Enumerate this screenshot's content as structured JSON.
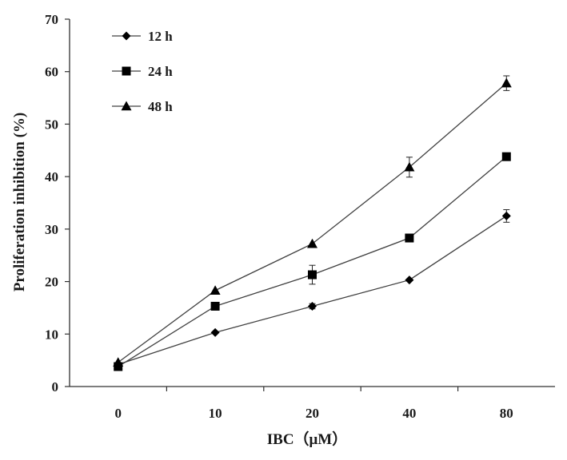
{
  "chart_data": {
    "type": "line",
    "title": "",
    "xlabel": "IBC（μM）",
    "ylabel": "Proliferation inhibition (%)",
    "categories": [
      "0",
      "10",
      "20",
      "40",
      "80"
    ],
    "ylim": [
      0,
      70
    ],
    "yticks": [
      0,
      10,
      20,
      30,
      40,
      50,
      60,
      70
    ],
    "grid": false,
    "legend_position": "top-left",
    "series": [
      {
        "name": "12 h",
        "marker": "diamond",
        "values": [
          4.2,
          10.3,
          15.3,
          20.3,
          32.5
        ],
        "errors": [
          0.4,
          0.4,
          0.5,
          0.4,
          1.2
        ]
      },
      {
        "name": "24 h",
        "marker": "square",
        "values": [
          3.8,
          15.3,
          21.3,
          28.3,
          43.8
        ],
        "errors": [
          0.4,
          0.5,
          1.8,
          0.5,
          0.5
        ]
      },
      {
        "name": "48 h",
        "marker": "triangle",
        "values": [
          4.6,
          18.3,
          27.2,
          41.8,
          57.8
        ],
        "errors": [
          0.3,
          0.4,
          0.3,
          1.9,
          1.4
        ]
      }
    ],
    "line_color": "#404040",
    "marker_color": "#000000"
  }
}
